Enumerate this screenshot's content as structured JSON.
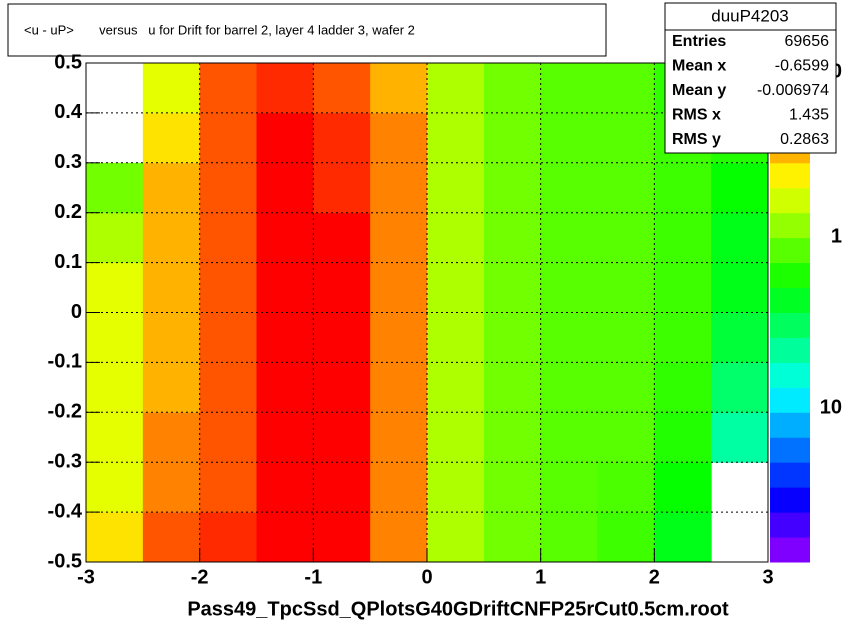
{
  "chart_data": {
    "type": "heatmap",
    "title": "<u - uP>       versus   u for Drift for barrel 2, layer 4 ladder 3, wafer 2",
    "x_label": "Pass49_TpcSsd_QPlotsG40GDriftCNFP25rCut0.5cm.root",
    "xlim": [
      -3,
      3
    ],
    "xticks": [
      -3,
      -2,
      -1,
      0,
      1,
      2,
      3
    ],
    "ylim": [
      -0.5,
      0.5
    ],
    "yticks": [
      -0.5,
      -0.4,
      -0.3,
      -0.2,
      -0.1,
      0,
      0.1,
      0.2,
      0.3,
      0.4,
      0.5
    ],
    "grid": true,
    "x_bins": [
      -3,
      -2.5,
      -2,
      -1.5,
      -1,
      -0.5,
      0,
      0.5,
      1,
      1.5,
      2,
      2.5,
      3
    ],
    "y_bins": [
      -0.5,
      -0.4,
      -0.3,
      -0.2,
      -0.1,
      0,
      0.1,
      0.2,
      0.3,
      0.4,
      0.5
    ],
    "z": [
      [
        4.5,
        6,
        6.5,
        7,
        7,
        5.5,
        3.5,
        3,
        2.8,
        2.6,
        2,
        null
      ],
      [
        4,
        5.5,
        6,
        7,
        7,
        5.5,
        3.5,
        3,
        2.8,
        2.7,
        2.2,
        null
      ],
      [
        4,
        5.5,
        6,
        7,
        7,
        5.5,
        3.5,
        3,
        2.8,
        2.8,
        2.4,
        1.2
      ],
      [
        4,
        5,
        6,
        7,
        7,
        5.5,
        3.5,
        3,
        2.8,
        2.8,
        2.5,
        1.5
      ],
      [
        4,
        5,
        6,
        7,
        7,
        5.5,
        3.5,
        3,
        2.8,
        2.8,
        2.6,
        1.8
      ],
      [
        4,
        5,
        6,
        7,
        7,
        5.5,
        3.5,
        3,
        2.8,
        2.8,
        2.6,
        2
      ],
      [
        3.5,
        5,
        6,
        7,
        7,
        5.5,
        3.5,
        3,
        2.8,
        2.8,
        2.6,
        2
      ],
      [
        3,
        5,
        6,
        7,
        6.5,
        5.5,
        3.5,
        3,
        2.8,
        2.8,
        2.6,
        2.2
      ],
      [
        null,
        4.5,
        6,
        7,
        6.5,
        5.5,
        3.5,
        3,
        2.8,
        2.8,
        2.6,
        2.4
      ],
      [
        null,
        4,
        6,
        6.5,
        6,
        5,
        3.5,
        3,
        2.8,
        2.8,
        2.5,
        2.5
      ]
    ],
    "z_labels": [
      "0",
      "1",
      "10"
    ],
    "stats": {
      "name": "duuP4203",
      "rows": [
        {
          "label": "Entries",
          "value": "69656"
        },
        {
          "label": "Mean x",
          "value": "-0.6599"
        },
        {
          "label": "Mean y",
          "value": "-0.006974"
        },
        {
          "label": "RMS x",
          "value": "1.435"
        },
        {
          "label": "RMS y",
          "value": "0.2863"
        }
      ]
    }
  }
}
